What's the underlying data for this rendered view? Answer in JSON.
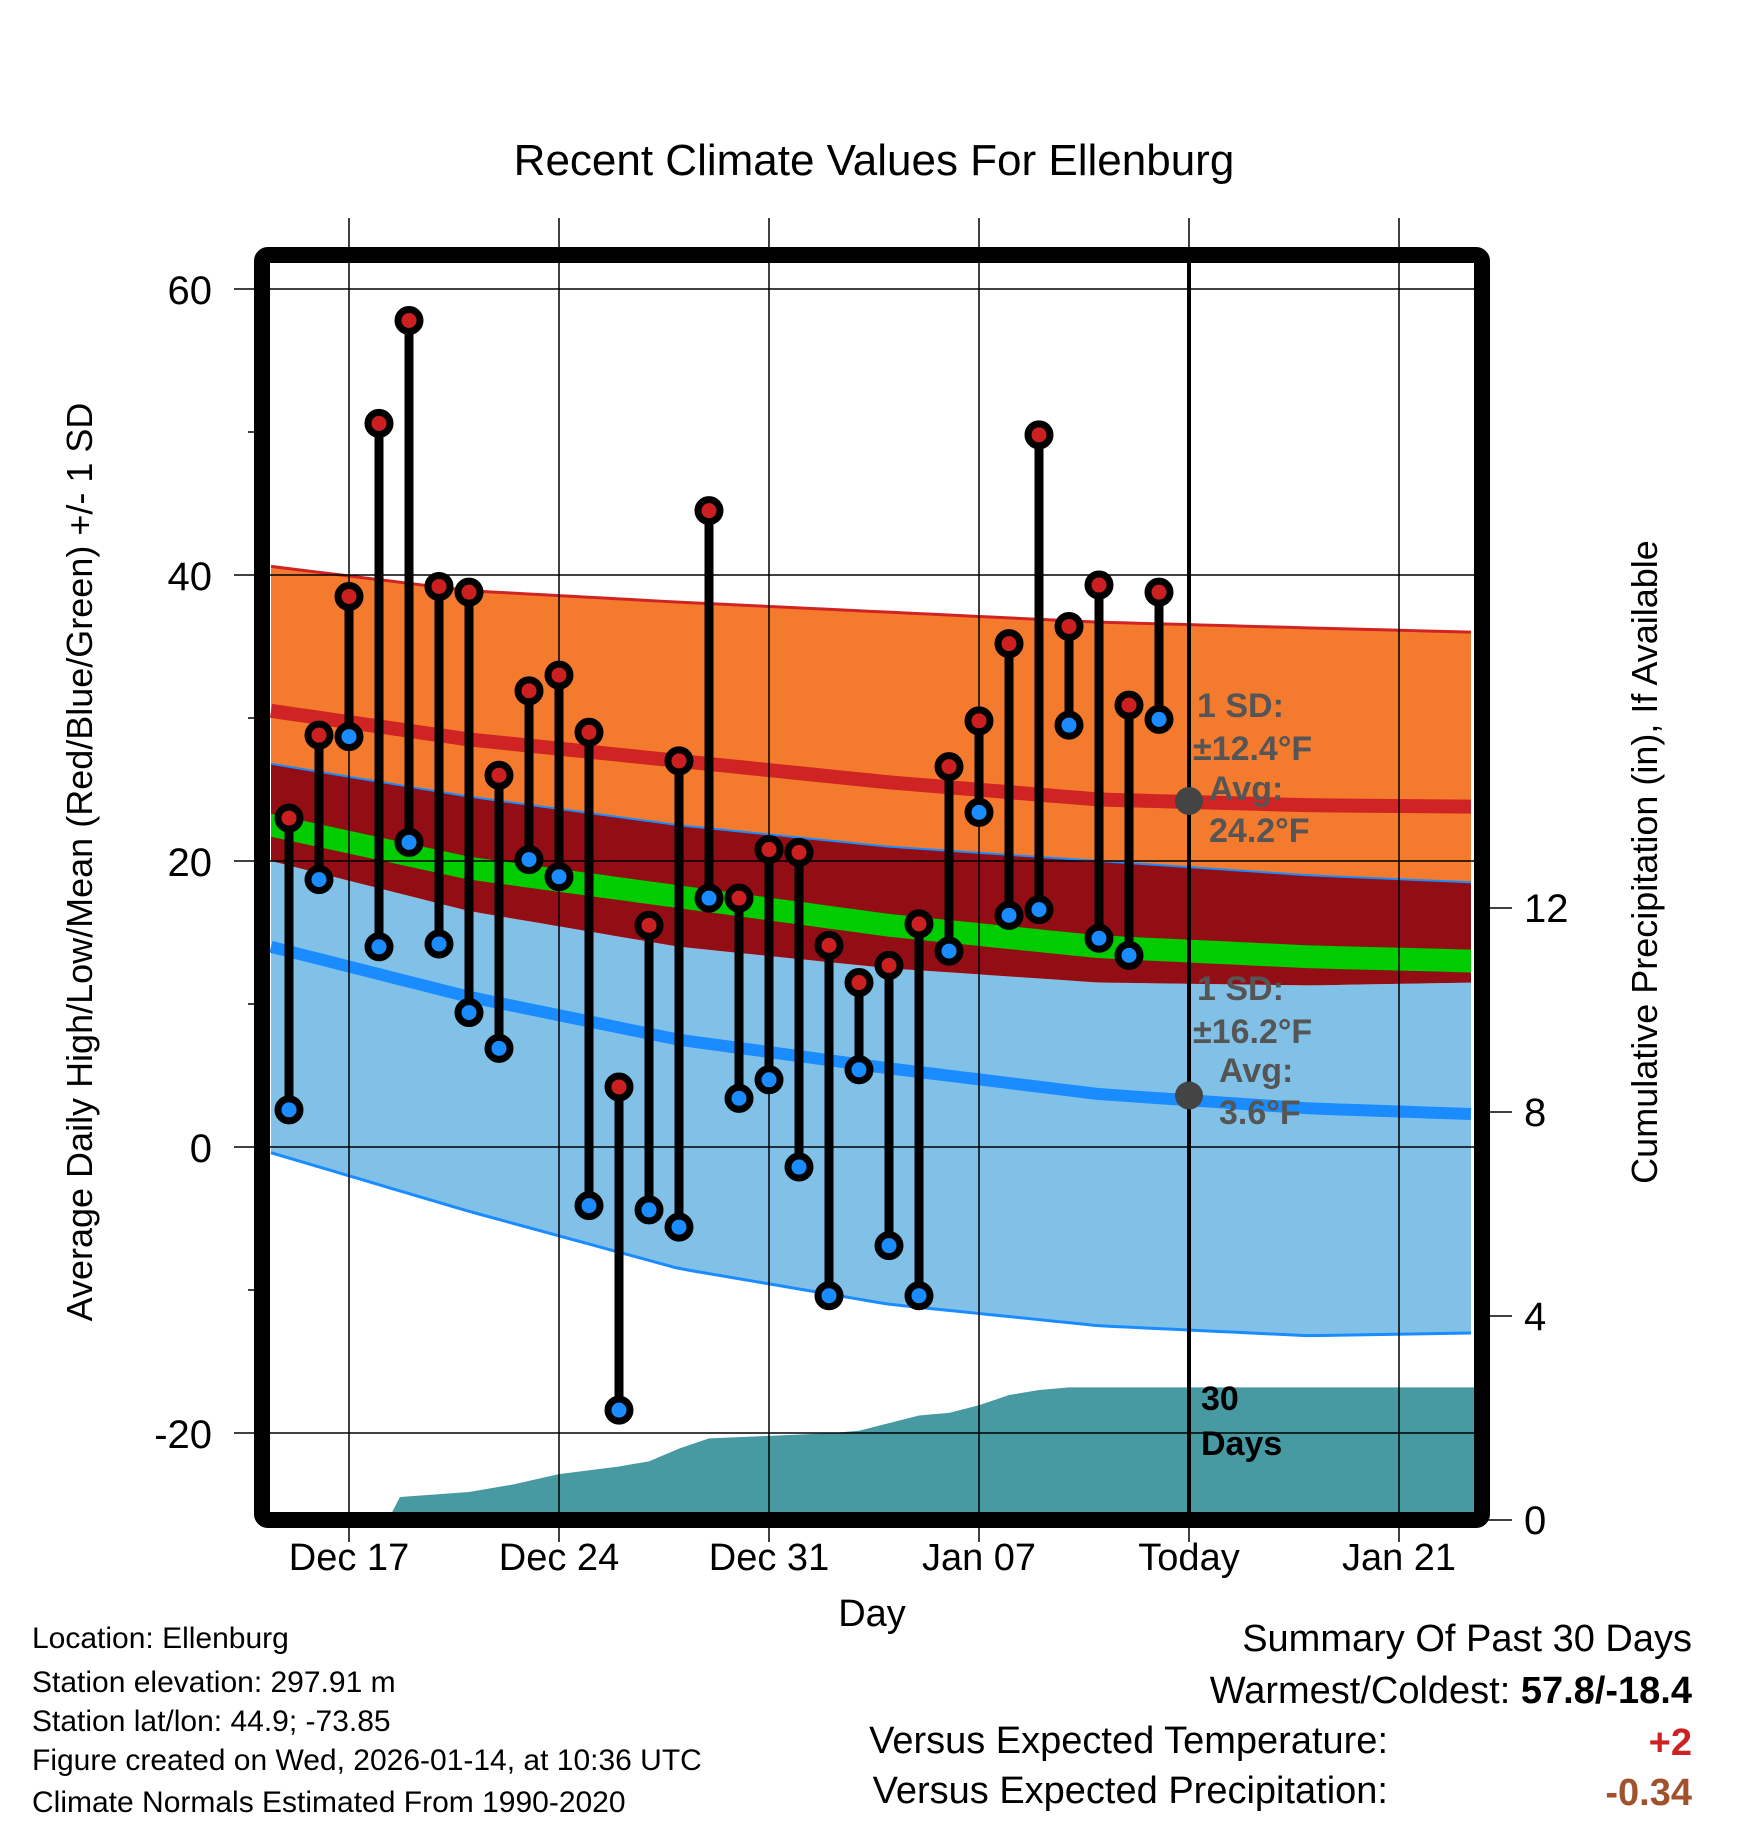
{
  "chart_data": {
    "type": "line",
    "title": "Recent Climate Values For Ellenburg",
    "xlabel": "Day",
    "ylabel": "Average Daily High/Low/Mean (Red/Blue/Green) +/- 1 SD",
    "y2label": "Cumulative Precipitation (in), If Available",
    "ylim": [
      -26.5,
      62.8
    ],
    "y2lim": [
      0,
      17.5
    ],
    "yticks": [
      "60",
      "40",
      "20",
      "0",
      "-20"
    ],
    "ytick_values": [
      60,
      40,
      20,
      0,
      -20
    ],
    "y2ticks": [
      "12",
      "8",
      "4",
      "0"
    ],
    "y2tick_values": [
      12,
      8,
      4,
      0
    ],
    "xticks": [
      "Dec 17",
      "Dec 24",
      "Dec 31",
      "Jan 07",
      "Today",
      "Jan 21"
    ],
    "xtick_days": [
      0,
      7,
      14,
      21,
      28,
      35
    ],
    "x_unit": "days since Dec 17",
    "xlim": [
      -2.6,
      37.5
    ],
    "today_day": 28,
    "observed": {
      "days": [
        -2,
        -1,
        0,
        1,
        2,
        3,
        4,
        5,
        6,
        7,
        8,
        9,
        10,
        11,
        12,
        13,
        14,
        15,
        16,
        17,
        18,
        19,
        20,
        21,
        22,
        23,
        24,
        25,
        26,
        27
      ],
      "highs": [
        23,
        28.8,
        38.5,
        50.6,
        57.8,
        39.2,
        38.8,
        26,
        31.9,
        33,
        29,
        4.2,
        15.5,
        27,
        44.5,
        17.4,
        20.8,
        20.6,
        14.1,
        11.5,
        12.7,
        15.6,
        26.6,
        29.8,
        35.2,
        49.8,
        36.4,
        39.3,
        30.9,
        38.8
      ],
      "lows": [
        2.6,
        18.7,
        28.7,
        14,
        21.3,
        14.2,
        9.4,
        6.9,
        20.1,
        18.9,
        -4.1,
        -18.4,
        -4.4,
        -5.6,
        17.4,
        3.4,
        4.7,
        -1.4,
        -10.4,
        5.4,
        -6.9,
        -10.4,
        13.7,
        23.4,
        16.2,
        16.6,
        29.5,
        14.6,
        13.4,
        29.9
      ]
    },
    "normals": {
      "days": [
        -2.6,
        4,
        11,
        18,
        25,
        32,
        37.5
      ],
      "high_upper": [
        40.6,
        38.9,
        38.1,
        37.4,
        36.7,
        36.3,
        36.0
      ],
      "high_mean": [
        30.5,
        28.5,
        27,
        25.5,
        24.3,
        23.9,
        23.8
      ],
      "high_lower": [
        26.8,
        24.5,
        22.5,
        21,
        20,
        19,
        18.5
      ],
      "mean": [
        22.5,
        19.5,
        17.5,
        15.5,
        14,
        13.3,
        13.0
      ],
      "low_upper": [
        20,
        16.5,
        14,
        12.5,
        11.5,
        11.3,
        11.5
      ],
      "low_mean": [
        14,
        10.5,
        7.5,
        5.5,
        3.7,
        2.7,
        2.3
      ],
      "low_lower": [
        -0.4,
        -4.5,
        -8.5,
        -11,
        -12.5,
        -13.2,
        -13
      ]
    },
    "precip_cumulative": {
      "days": [
        1.3,
        1.7,
        4,
        5.5,
        7,
        9,
        10,
        11,
        12,
        14,
        16,
        17,
        18,
        19,
        20,
        21,
        22,
        23,
        24,
        37.5
      ],
      "values": [
        0,
        0.45,
        0.55,
        0.7,
        0.9,
        1.05,
        1.15,
        1.4,
        1.6,
        1.65,
        1.7,
        1.75,
        1.9,
        2.05,
        2.1,
        2.25,
        2.45,
        2.55,
        2.6,
        2.6
      ]
    },
    "annotations": {
      "high_sd_label": "1 SD:",
      "high_sd_value": "±12.4°F",
      "high_avg_label": "Avg:",
      "high_avg_value": "24.2°F",
      "high_avg": 24.2,
      "low_sd_label": "1 SD:",
      "low_sd_value": "±16.2°F",
      "low_avg_label": "Avg:",
      "low_avg_value": "3.6°F",
      "low_avg": 3.6,
      "precip_label_1": "30",
      "precip_label_2": "Days"
    },
    "colors": {
      "high_band": "#f47b2e",
      "high_mean": "#d02424",
      "mid_band": "#920d14",
      "mean": "#00cc00",
      "low_band": "#82c1e7",
      "low_mean": "#1a8cff",
      "precip": "#4799a2",
      "high_dot": "#cc2020",
      "low_dot": "#1a8cff"
    }
  },
  "footer": {
    "location": "Location: Ellenburg",
    "elevation": "Station elevation: 297.91 m",
    "latlon": "Station lat/lon: 44.9; -73.85",
    "created": "Figure created on Wed, 2026-01-14, at 10:36 UTC",
    "normals": "Climate Normals Estimated From 1990-2020"
  },
  "summary": {
    "title": "Summary Of Past 30 Days",
    "warm_cold_label": "Warmest/Coldest:",
    "warm_cold_value": "57.8/-18.4",
    "temp_label": "Versus Expected Temperature:",
    "temp_value": "+2",
    "precip_label": "Versus Expected Precipitation:",
    "precip_value": "-0.34"
  }
}
